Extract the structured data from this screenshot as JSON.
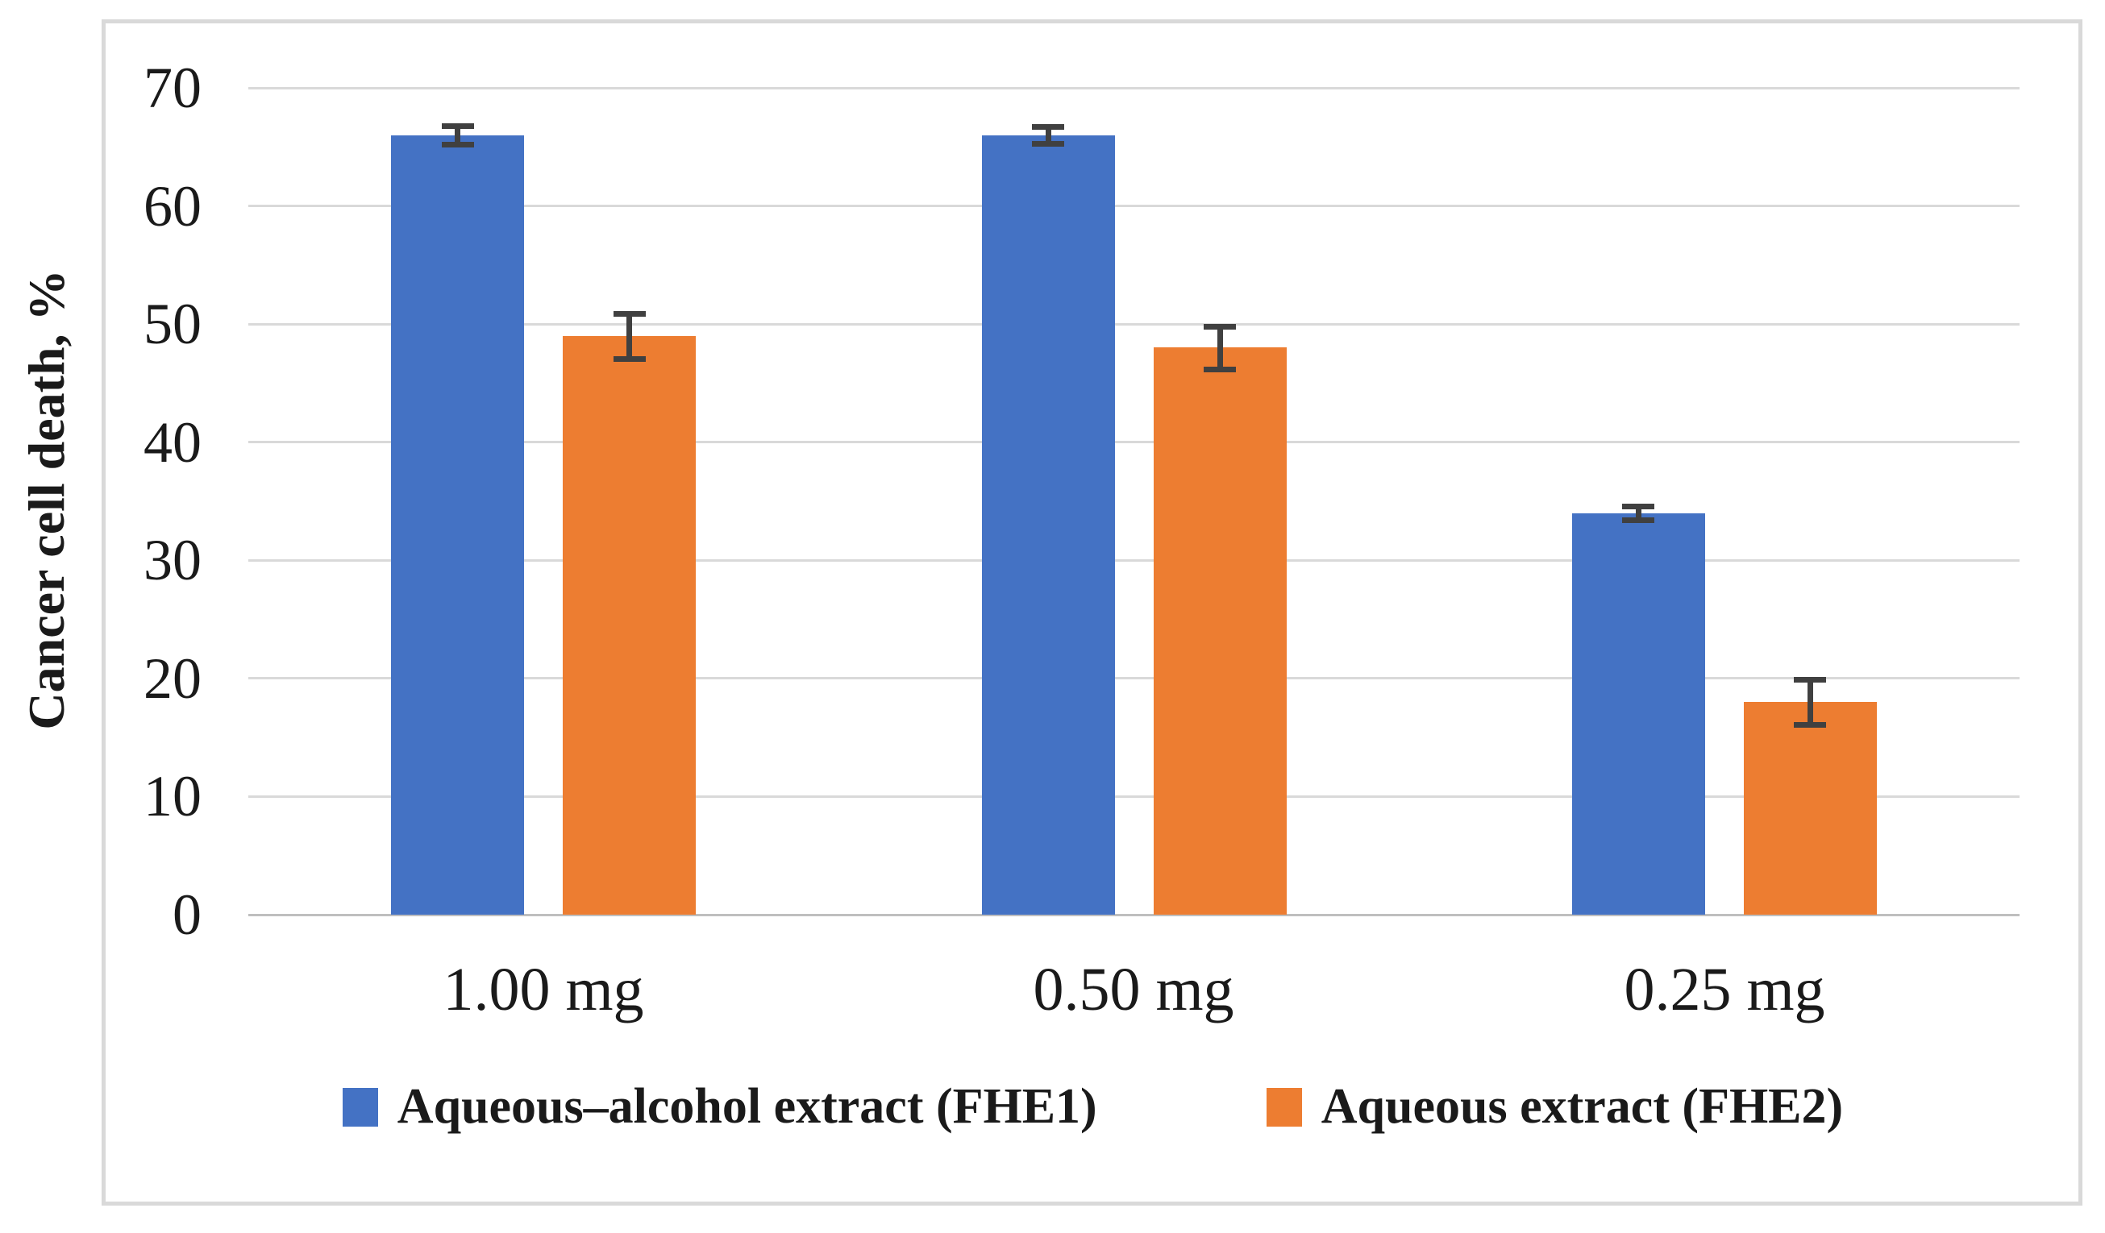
{
  "chart_data": {
    "type": "bar",
    "title": "",
    "xlabel": "",
    "ylabel": "Cancer cell death, %",
    "categories": [
      "1.00 mg",
      "0.50 mg",
      "0.25 mg"
    ],
    "series": [
      {
        "name": "Aqueous–alcohol extract (FHE1)",
        "color": "#4472C4",
        "values": [
          66,
          66,
          34
        ],
        "errors": [
          0.8,
          0.7,
          0.6
        ]
      },
      {
        "name": "Aqueous extract (FHE2)",
        "color": "#ED7D31",
        "values": [
          49,
          48,
          18
        ],
        "errors": [
          1.9,
          1.8,
          1.9
        ]
      }
    ],
    "ylim": [
      0,
      70
    ],
    "yticks": [
      0,
      10,
      20,
      30,
      40,
      50,
      60,
      70
    ],
    "grid": true,
    "legend_position": "bottom",
    "error_bar_color": "#404040",
    "gridline_color": "#D9D9D9"
  }
}
